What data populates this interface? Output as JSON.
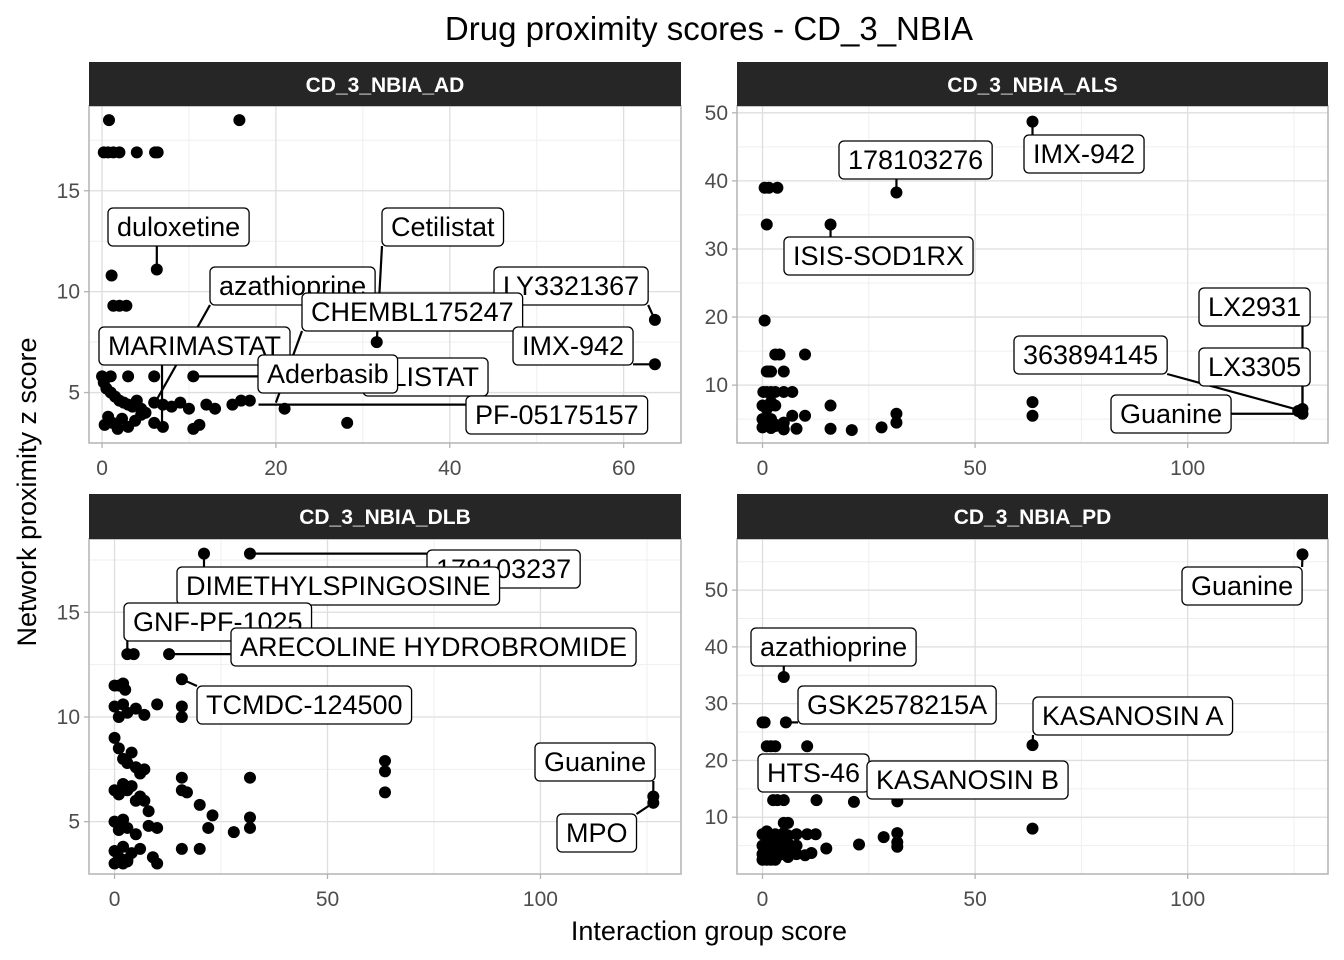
{
  "title": "Drug proximity scores - CD_3_NBIA",
  "xlabel": "Interaction group score",
  "ylabel": "Network proximity z score",
  "colors": {
    "strip_bg": "#262626",
    "strip_text": "#ffffff",
    "panel_border": "#b3b3b3",
    "grid_major": "#dedede",
    "grid_minor": "#efefef",
    "point": "#000000",
    "label_bg": "#ffffff",
    "label_border": "#000000",
    "tick_text": "#4d4d4d",
    "axis_text": "#000000"
  },
  "chart_data": [
    {
      "type": "scatter",
      "panel": "CD_3_NBIA_AD",
      "xlim": [
        -1.5,
        66.6
      ],
      "ylim": [
        2.5,
        19.2
      ],
      "x_ticks": [
        0,
        20,
        40,
        60
      ],
      "y_ticks": [
        5,
        10,
        15
      ],
      "points": [
        [
          0.8,
          18.5
        ],
        [
          15.8,
          18.5
        ],
        [
          0.2,
          16.9
        ],
        [
          0.7,
          16.9
        ],
        [
          1.3,
          16.9
        ],
        [
          2,
          16.9
        ],
        [
          4,
          16.9
        ],
        [
          6.1,
          16.9
        ],
        [
          6.4,
          16.9
        ],
        [
          6.3,
          11.1
        ],
        [
          1.1,
          10.8
        ],
        [
          1.3,
          9.3
        ],
        [
          2,
          9.3
        ],
        [
          2.8,
          9.3
        ],
        [
          63.6,
          8.6
        ],
        [
          31.6,
          7.5
        ],
        [
          63.6,
          6.4
        ],
        [
          0,
          5.8
        ],
        [
          1,
          5.8
        ],
        [
          3,
          5.8
        ],
        [
          6,
          5.8
        ],
        [
          10.5,
          5.8
        ],
        [
          0.2,
          5.5
        ],
        [
          0.5,
          5.2
        ],
        [
          1,
          5
        ],
        [
          1.5,
          4.8
        ],
        [
          2,
          4.6
        ],
        [
          2.5,
          4.5
        ],
        [
          3,
          4.4
        ],
        [
          3.5,
          4.3
        ],
        [
          4,
          4.6
        ],
        [
          4.5,
          4.2
        ],
        [
          5,
          4
        ],
        [
          6,
          4.5
        ],
        [
          7,
          4.4
        ],
        [
          8,
          4.3
        ],
        [
          9,
          4.5
        ],
        [
          10,
          4.2
        ],
        [
          12,
          4.4
        ],
        [
          13,
          4.2
        ],
        [
          15,
          4.4
        ],
        [
          16,
          4.6
        ],
        [
          17,
          4.6
        ],
        [
          21,
          4.2
        ],
        [
          0.3,
          3.4
        ],
        [
          0.7,
          3.8
        ],
        [
          1.2,
          3.5
        ],
        [
          1.8,
          3.2
        ],
        [
          2.3,
          3.7
        ],
        [
          3,
          3.3
        ],
        [
          3.8,
          3.6
        ],
        [
          4.5,
          3.9
        ],
        [
          6,
          3.5
        ],
        [
          7,
          3.3
        ],
        [
          10.5,
          3.2
        ],
        [
          11.2,
          3.4
        ],
        [
          28.2,
          3.5
        ]
      ],
      "labels": [
        {
          "text": "duloxetine",
          "x": 6.3,
          "y": 11.1
        },
        {
          "text": "Cetilistat",
          "x": 31.6,
          "y": 7.5
        },
        {
          "text": "azathioprine",
          "x": 6.1,
          "y": 4.5
        },
        {
          "text": "LY3321367",
          "x": 63.6,
          "y": 8.6
        },
        {
          "text": "CHEMBL175247",
          "x": 20,
          "y": 4.5
        },
        {
          "text": "MARIMASTAT",
          "x": 6.9,
          "y": 3.5
        },
        {
          "text": "IMX-942",
          "x": 63.6,
          "y": 6.4
        },
        {
          "text": "RLISTAT",
          "x": 31.6,
          "y": 4.5
        },
        {
          "text": "Aderbasib",
          "x": 10.5,
          "y": 5.8
        },
        {
          "text": "PF-05175157",
          "x": 18,
          "y": 4.4
        }
      ]
    },
    {
      "type": "scatter",
      "panel": "CD_3_NBIA_ALS",
      "xlim": [
        -6,
        133
      ],
      "ylim": [
        1.5,
        51
      ],
      "x_ticks": [
        0,
        50,
        100
      ],
      "y_ticks": [
        10,
        20,
        30,
        40,
        50
      ],
      "points": [
        [
          0.5,
          39
        ],
        [
          1.5,
          39
        ],
        [
          3.5,
          39
        ],
        [
          1,
          33.6
        ],
        [
          16,
          33.6
        ],
        [
          31.5,
          38.3
        ],
        [
          63.5,
          48.7
        ],
        [
          0.5,
          19.5
        ],
        [
          1,
          12
        ],
        [
          1.5,
          12
        ],
        [
          2,
          12
        ],
        [
          3,
          14.5
        ],
        [
          4,
          14.5
        ],
        [
          5,
          12
        ],
        [
          10,
          14.5
        ],
        [
          0.2,
          9
        ],
        [
          1,
          9
        ],
        [
          2,
          9
        ],
        [
          3,
          9
        ],
        [
          5,
          9
        ],
        [
          7,
          9
        ],
        [
          0,
          7
        ],
        [
          1,
          6.5
        ],
        [
          2,
          7.5
        ],
        [
          3,
          7
        ],
        [
          16,
          7
        ],
        [
          63.5,
          7.5
        ],
        [
          63.5,
          5.5
        ],
        [
          0,
          5
        ],
        [
          1,
          4.5
        ],
        [
          2,
          5
        ],
        [
          3,
          4
        ],
        [
          5,
          4.5
        ],
        [
          7,
          5.5
        ],
        [
          10,
          5.5
        ],
        [
          31.5,
          5.8
        ],
        [
          31.5,
          4.5
        ],
        [
          0,
          3.8
        ],
        [
          1,
          4
        ],
        [
          2,
          3.7
        ],
        [
          3,
          4.2
        ],
        [
          5,
          3.5
        ],
        [
          8,
          3.6
        ],
        [
          16,
          3.6
        ],
        [
          21,
          3.4
        ],
        [
          28,
          3.8
        ],
        [
          127,
          6.5
        ],
        [
          127,
          5.8
        ],
        [
          126,
          6.2
        ]
      ],
      "labels": [
        {
          "text": "178103276",
          "x": 31.5,
          "y": 38.3
        },
        {
          "text": "IMX-942",
          "x": 63.5,
          "y": 48.7
        },
        {
          "text": "ISIS-SOD1RX",
          "x": 16,
          "y": 33.6
        },
        {
          "text": "LX2931",
          "x": 127,
          "y": 6.5
        },
        {
          "text": "363894145",
          "x": 127,
          "y": 6.2
        },
        {
          "text": "LX3305",
          "x": 127,
          "y": 6.2
        },
        {
          "text": "Guanine",
          "x": 127,
          "y": 5.8
        }
      ]
    },
    {
      "type": "scatter",
      "panel": "CD_3_NBIA_DLB",
      "xlim": [
        -6,
        133
      ],
      "ylim": [
        2.5,
        18.5
      ],
      "x_ticks": [
        0,
        50,
        100
      ],
      "y_ticks": [
        5,
        10,
        15
      ],
      "points": [
        [
          21,
          17.8
        ],
        [
          31.8,
          17.8
        ],
        [
          3,
          13
        ],
        [
          4.5,
          13
        ],
        [
          12.8,
          13
        ],
        [
          15.8,
          11.8
        ],
        [
          15.8,
          10.5
        ],
        [
          15.8,
          10
        ],
        [
          0,
          11.5
        ],
        [
          1,
          11.5
        ],
        [
          2,
          11.6
        ],
        [
          2.5,
          11.3
        ],
        [
          0,
          10.5
        ],
        [
          1,
          10
        ],
        [
          2,
          10.6
        ],
        [
          3,
          10.2
        ],
        [
          5,
          10.4
        ],
        [
          7,
          10.1
        ],
        [
          10,
          10.6
        ],
        [
          0,
          9
        ],
        [
          1,
          8.5
        ],
        [
          2,
          8
        ],
        [
          3,
          7.8
        ],
        [
          4,
          8.3
        ],
        [
          5,
          7.6
        ],
        [
          6,
          7.3
        ],
        [
          7,
          7.5
        ],
        [
          0,
          6.5
        ],
        [
          1,
          6.3
        ],
        [
          2,
          6.8
        ],
        [
          3,
          6.5
        ],
        [
          4,
          6.7
        ],
        [
          5,
          6
        ],
        [
          6,
          6.2
        ],
        [
          7,
          6
        ],
        [
          8,
          5.5
        ],
        [
          15.8,
          7.1
        ],
        [
          15.8,
          6.5
        ],
        [
          17,
          6.4
        ],
        [
          20,
          5.8
        ],
        [
          31.8,
          7.1
        ],
        [
          63.5,
          7.9
        ],
        [
          63.5,
          7.4
        ],
        [
          63.5,
          6.4
        ],
        [
          0,
          5
        ],
        [
          1,
          4.6
        ],
        [
          2,
          5.1
        ],
        [
          3,
          4.7
        ],
        [
          5,
          4.4
        ],
        [
          8,
          4.8
        ],
        [
          10,
          4.7
        ],
        [
          22,
          4.7
        ],
        [
          23,
          5.3
        ],
        [
          28,
          4.5
        ],
        [
          31.8,
          5.2
        ],
        [
          31.8,
          4.7
        ],
        [
          0,
          3.6
        ],
        [
          1,
          3.3
        ],
        [
          2,
          3.8
        ],
        [
          3,
          3.1
        ],
        [
          4,
          3.5
        ],
        [
          6,
          3.7
        ],
        [
          9,
          3.3
        ],
        [
          10,
          3
        ],
        [
          15.8,
          3.7
        ],
        [
          20,
          3.7
        ],
        [
          0,
          3
        ],
        [
          1,
          3.1
        ],
        [
          2,
          3
        ],
        [
          3,
          3.2
        ],
        [
          126.5,
          6.2
        ],
        [
          126.5,
          5.9
        ]
      ],
      "labels": [
        {
          "text": "178103237",
          "x": 31.8,
          "y": 17.8
        },
        {
          "text": "DIMETHYLSPINGOSINE",
          "x": 21,
          "y": 17.8
        },
        {
          "text": "GNF-PF-1025",
          "x": 3,
          "y": 13
        },
        {
          "text": "ARECOLINE HYDROBROMIDE",
          "x": 12.8,
          "y": 13
        },
        {
          "text": "TCMDC-124500",
          "x": 15.8,
          "y": 11.8
        },
        {
          "text": "Guanine",
          "x": 126.5,
          "y": 6.2
        },
        {
          "text": "MPO",
          "x": 126.5,
          "y": 5.9
        }
      ]
    },
    {
      "type": "scatter",
      "panel": "CD_3_NBIA_PD",
      "xlim": [
        -6,
        133
      ],
      "ylim": [
        0,
        59
      ],
      "x_ticks": [
        0,
        50,
        100
      ],
      "y_ticks": [
        10,
        20,
        30,
        40,
        50
      ],
      "points": [
        [
          127,
          56.3
        ],
        [
          5,
          34.7
        ],
        [
          0,
          26.7
        ],
        [
          0.5,
          26.7
        ],
        [
          5.5,
          26.7
        ],
        [
          1,
          22.5
        ],
        [
          2,
          22.5
        ],
        [
          3,
          22.5
        ],
        [
          10.5,
          22.5
        ],
        [
          63.5,
          22.7
        ],
        [
          2.5,
          13
        ],
        [
          3.5,
          13
        ],
        [
          5,
          13
        ],
        [
          12.7,
          13
        ],
        [
          21.5,
          12.7
        ],
        [
          31.7,
          12.8
        ],
        [
          5,
          9
        ],
        [
          6,
          9
        ],
        [
          63.5,
          8
        ],
        [
          0,
          7
        ],
        [
          1,
          7.5
        ],
        [
          2,
          6.5
        ],
        [
          3,
          7
        ],
        [
          4,
          6
        ],
        [
          5,
          7.2
        ],
        [
          6,
          6.8
        ],
        [
          8,
          7
        ],
        [
          10.5,
          7
        ],
        [
          12.5,
          7
        ],
        [
          28.5,
          6.5
        ],
        [
          31.7,
          7.2
        ],
        [
          0,
          5
        ],
        [
          1,
          5.3
        ],
        [
          2,
          4.8
        ],
        [
          3,
          5.5
        ],
        [
          4,
          5
        ],
        [
          5,
          5.2
        ],
        [
          6,
          5.4
        ],
        [
          7,
          4.8
        ],
        [
          8,
          5
        ],
        [
          15,
          4.5
        ],
        [
          22.7,
          5.2
        ],
        [
          31.7,
          5.6
        ],
        [
          31.7,
          4.8
        ],
        [
          0,
          3.5
        ],
        [
          1,
          3.2
        ],
        [
          2,
          3.6
        ],
        [
          3,
          3.3
        ],
        [
          4,
          3.4
        ],
        [
          5,
          3.5
        ],
        [
          6,
          3
        ],
        [
          8,
          3.5
        ],
        [
          10,
          3.3
        ],
        [
          11.5,
          3.7
        ],
        [
          0,
          2.5
        ],
        [
          1,
          2.5
        ],
        [
          2,
          2.5
        ],
        [
          3,
          2.5
        ]
      ],
      "labels": [
        {
          "text": "Guanine",
          "x": 127,
          "y": 56.3
        },
        {
          "text": "azathioprine",
          "x": 5,
          "y": 34.7
        },
        {
          "text": "GSK2578215A",
          "x": 5.5,
          "y": 26.7
        },
        {
          "text": "KASANOSIN A",
          "x": 63.5,
          "y": 22.7
        },
        {
          "text": "HTS-46",
          "x": 10.5,
          "y": 22.5
        },
        {
          "text": "KASANOSIN B",
          "x": 31.7,
          "y": 12.8
        }
      ]
    }
  ]
}
